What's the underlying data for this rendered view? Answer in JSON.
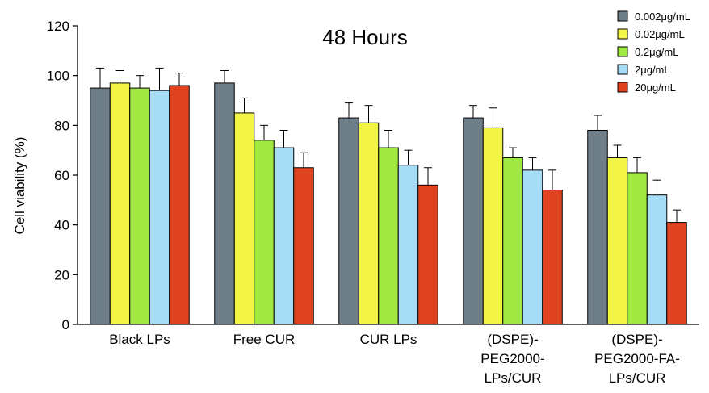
{
  "chart_data": {
    "type": "bar",
    "title": "48 Hours",
    "xlabel": "",
    "ylabel": "Cell viability (%)",
    "ylim": [
      0,
      120
    ],
    "yticks": [
      "0",
      "20",
      "40",
      "60",
      "80",
      "100",
      "120"
    ],
    "categories": [
      [
        "Black LPs"
      ],
      [
        "Free CUR"
      ],
      [
        "CUR LPs"
      ],
      [
        "(DSPE)-",
        "PEG2000-",
        "LPs/CUR"
      ],
      [
        "(DSPE)-",
        "PEG2000-FA-",
        "LPs/CUR"
      ]
    ],
    "legend_position": "top-right",
    "series": [
      {
        "name": "0.002μg/mL",
        "color": "#6f7f8a",
        "values": [
          95,
          97,
          83,
          83,
          78
        ],
        "errors": [
          8,
          5,
          6,
          5,
          6
        ]
      },
      {
        "name": "0.02μg/mL",
        "color": "#f2f545",
        "values": [
          97,
          85,
          81,
          79,
          67
        ],
        "errors": [
          5,
          6,
          7,
          8,
          5
        ]
      },
      {
        "name": "0.2μg/mL",
        "color": "#a2e843",
        "values": [
          95,
          74,
          71,
          67,
          61
        ],
        "errors": [
          5,
          6,
          7,
          4,
          6
        ]
      },
      {
        "name": "2μg/mL",
        "color": "#a6dcf5",
        "values": [
          94,
          71,
          64,
          62,
          52
        ],
        "errors": [
          9,
          7,
          6,
          5,
          6
        ]
      },
      {
        "name": "20μg/mL",
        "color": "#e0431f",
        "values": [
          96,
          63,
          56,
          54,
          41
        ],
        "errors": [
          5,
          6,
          7,
          8,
          5
        ]
      }
    ]
  }
}
